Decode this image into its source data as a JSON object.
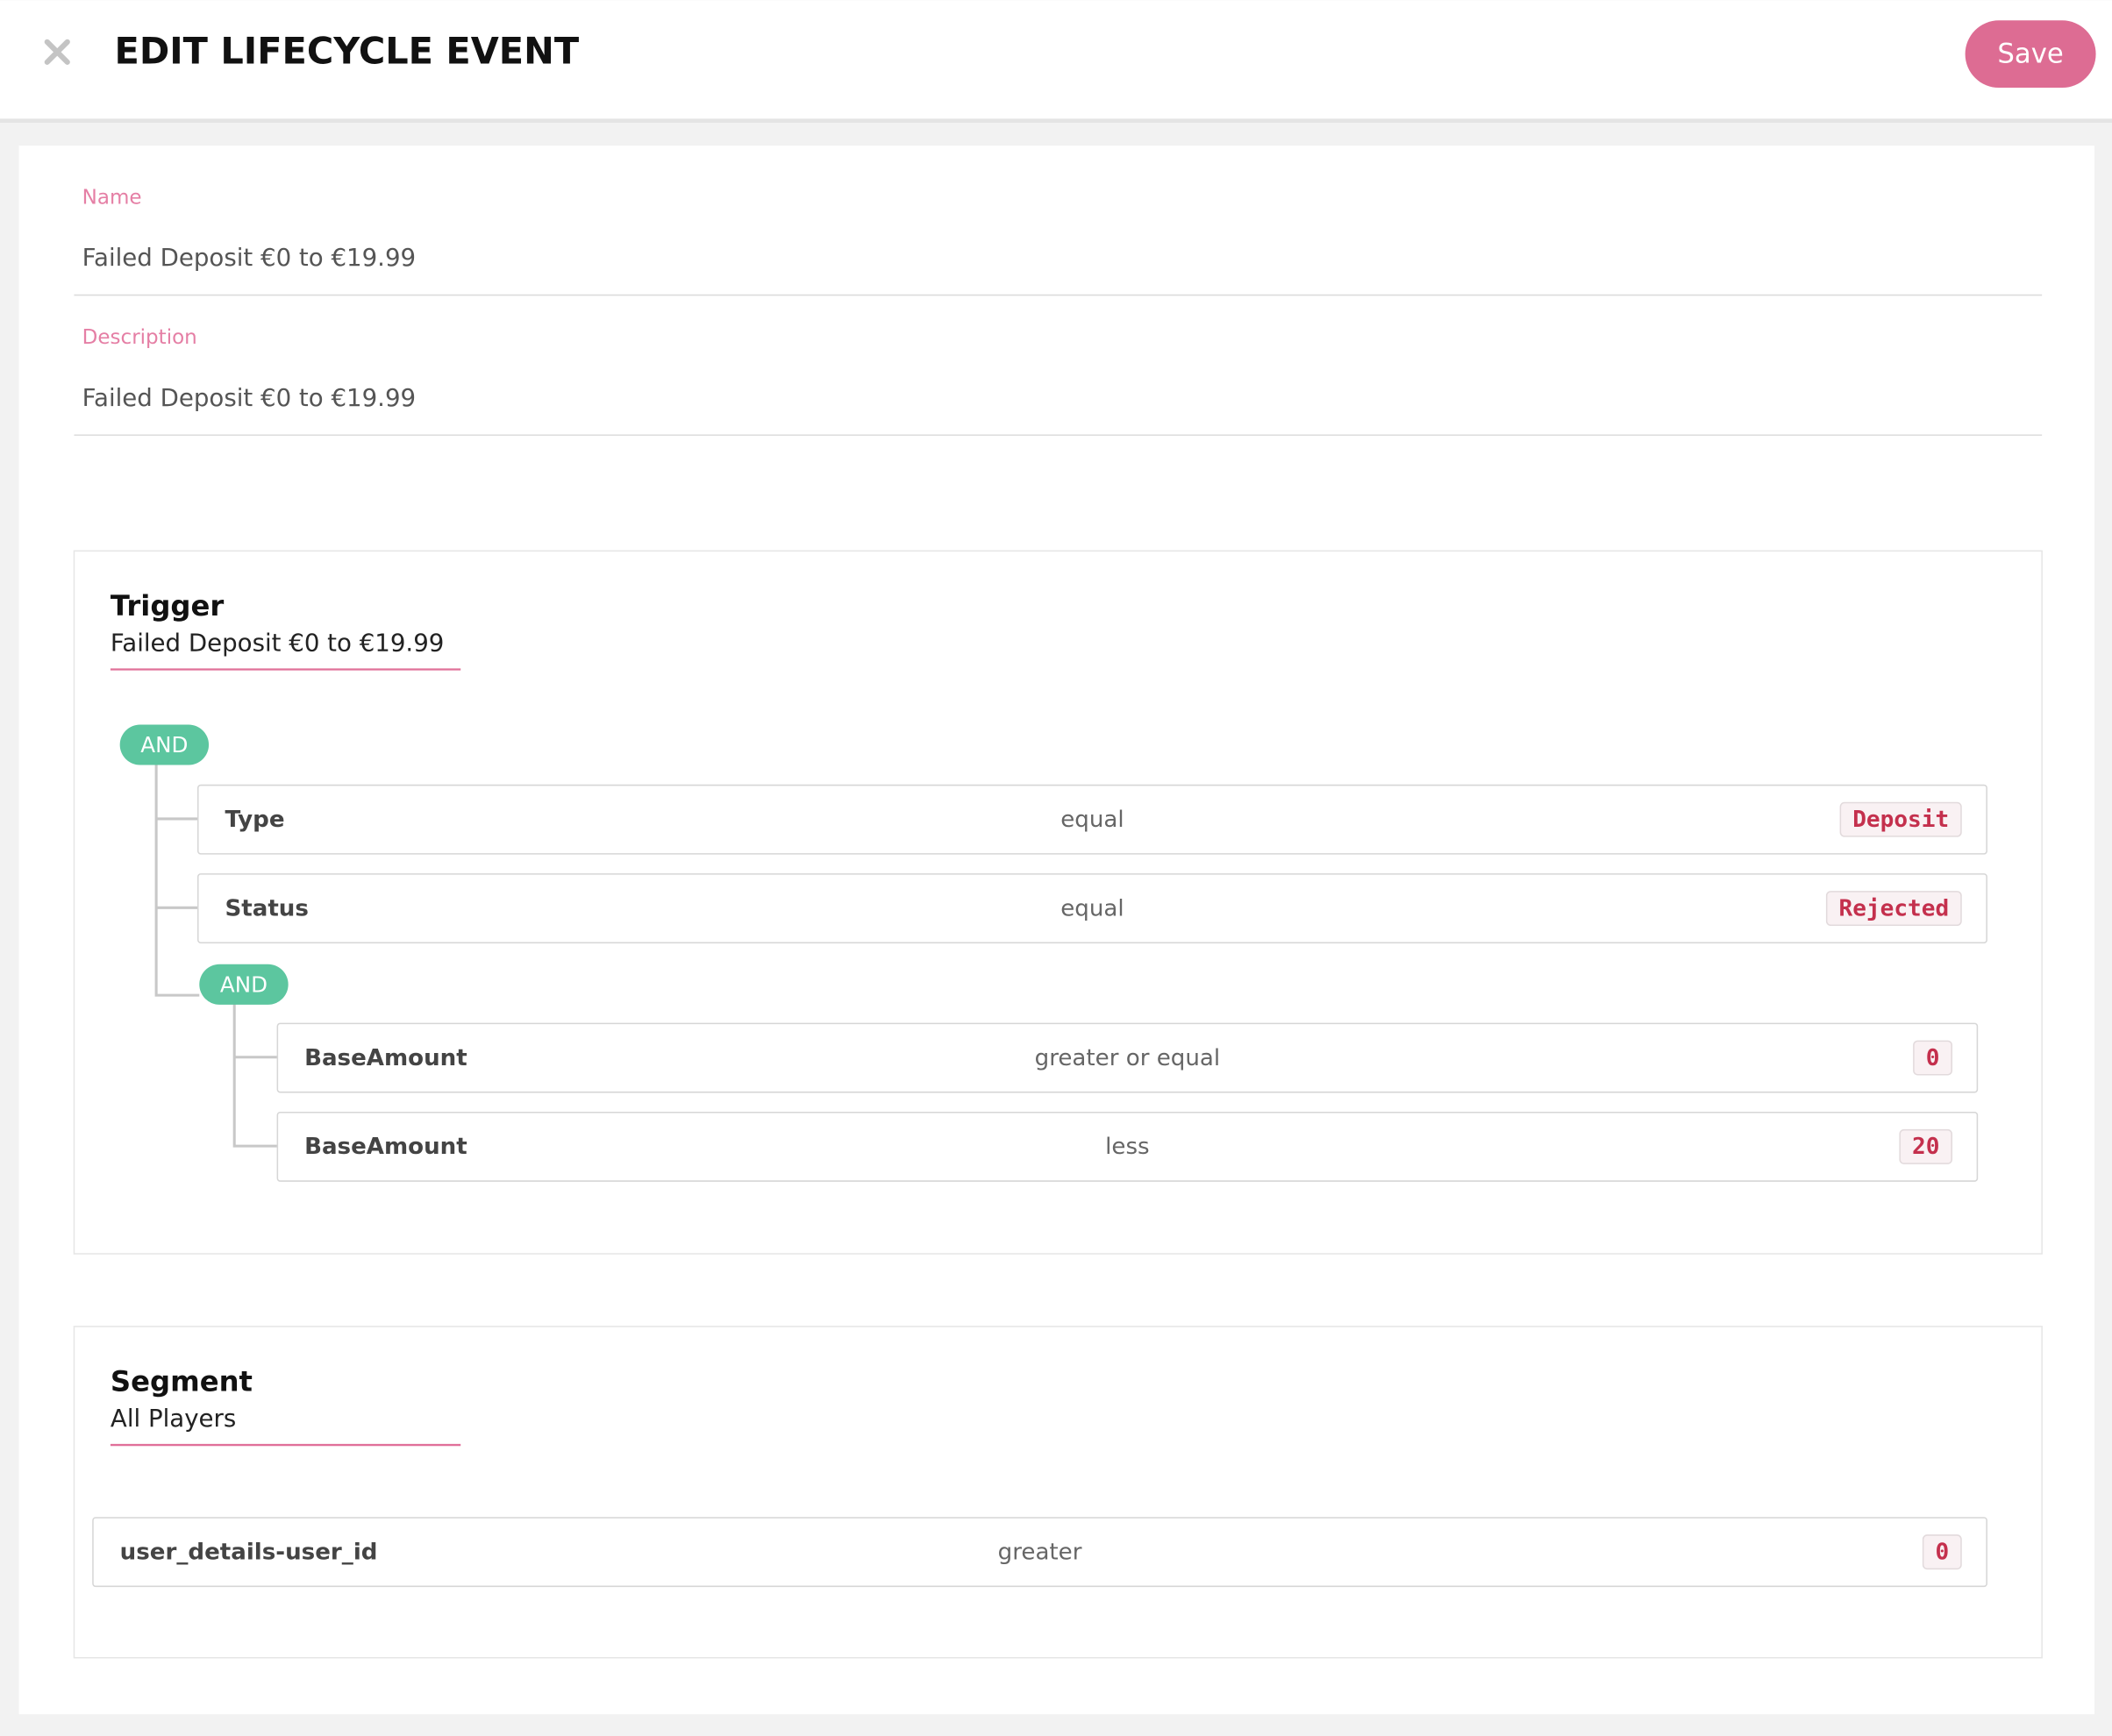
{
  "header": {
    "title": "EDIT LIFECYCLE EVENT",
    "save": "Save"
  },
  "form": {
    "name_label": "Name",
    "name_value": "Failed Deposit €0 to €19.99",
    "description_label": "Description",
    "description_value": "Failed Deposit €0 to €19.99"
  },
  "trigger": {
    "title": "Trigger",
    "subtitle": "Failed Deposit €0 to €19.99",
    "operator": "AND",
    "conditions": [
      {
        "field": "Type",
        "operator": "equal",
        "value": "Deposit"
      },
      {
        "field": "Status",
        "operator": "equal",
        "value": "Rejected"
      }
    ],
    "group": {
      "operator": "AND",
      "conditions": [
        {
          "field": "BaseAmount",
          "operator": "greater or equal",
          "value": "0"
        },
        {
          "field": "BaseAmount",
          "operator": "less",
          "value": "20"
        }
      ]
    }
  },
  "segment": {
    "title": "Segment",
    "subtitle": "All Players",
    "conditions": [
      {
        "field": "user_details-user_id",
        "operator": "greater",
        "value": "0"
      }
    ]
  }
}
